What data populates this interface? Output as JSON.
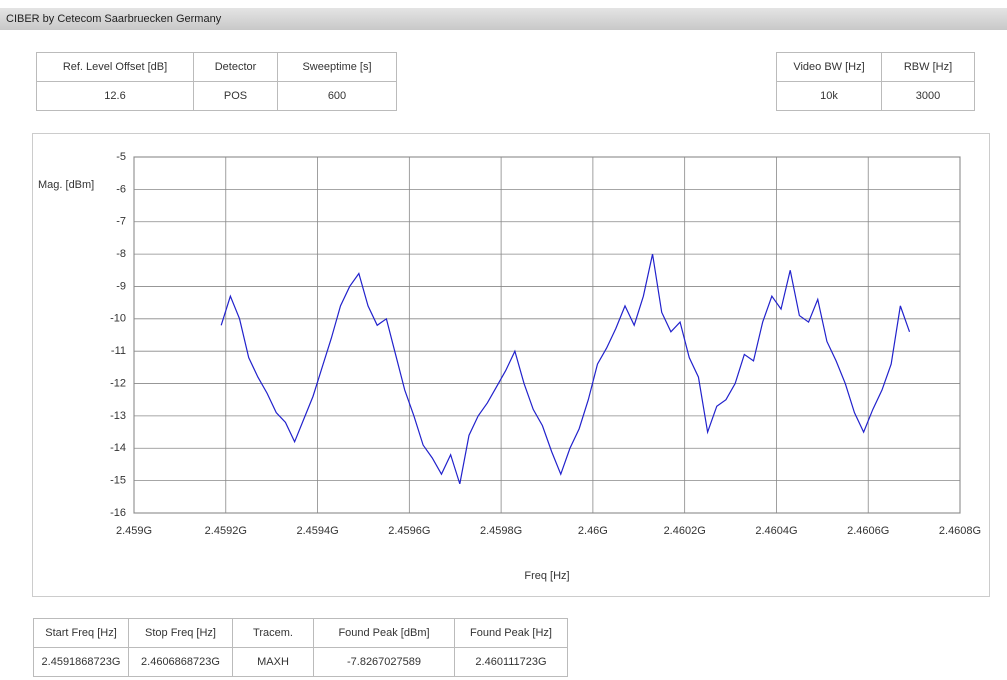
{
  "header": {
    "title": "CIBER by Cetecom Saarbruecken Germany"
  },
  "top_left_table": {
    "headers": [
      "Ref. Level Offset [dB]",
      "Detector",
      "Sweeptime [s]"
    ],
    "values": [
      "12.6",
      "POS",
      "600"
    ]
  },
  "top_right_table": {
    "headers": [
      "Video BW [Hz]",
      "RBW [Hz]"
    ],
    "values": [
      "10k",
      "3000"
    ]
  },
  "bottom_table": {
    "headers": [
      "Start Freq [Hz]",
      "Stop Freq [Hz]",
      "Tracem.",
      "Found Peak [dBm]",
      "Found Peak [Hz]"
    ],
    "values": [
      "2.4591868723G",
      "2.4606868723G",
      "MAXH",
      "-7.8267027589",
      "2.460111723G"
    ]
  },
  "chart_data": {
    "type": "line",
    "y_label": "Mag. [dBm]",
    "x_label": "Freq [Hz]",
    "grid": true,
    "xlim": [
      2.459,
      2.4608
    ],
    "ylim": [
      -16,
      -5
    ],
    "xticks": [
      {
        "value": 2.459,
        "label": "2.459G"
      },
      {
        "value": 2.4592,
        "label": "2.4592G"
      },
      {
        "value": 2.4594,
        "label": "2.4594G"
      },
      {
        "value": 2.4596,
        "label": "2.4596G"
      },
      {
        "value": 2.4598,
        "label": "2.4598G"
      },
      {
        "value": 2.46,
        "label": "2.46G"
      },
      {
        "value": 2.4602,
        "label": "2.4602G"
      },
      {
        "value": 2.4604,
        "label": "2.4604G"
      },
      {
        "value": 2.4606,
        "label": "2.4606G"
      },
      {
        "value": 2.4608,
        "label": "2.4608G"
      }
    ],
    "yticks": [
      -5,
      -6,
      -7,
      -8,
      -9,
      -10,
      -11,
      -12,
      -13,
      -14,
      -15,
      -16
    ],
    "x": [
      2.45919,
      2.45921,
      2.45923,
      2.45925,
      2.45927,
      2.45929,
      2.45931,
      2.45933,
      2.45935,
      2.45937,
      2.45939,
      2.45941,
      2.45943,
      2.45945,
      2.45947,
      2.45949,
      2.45951,
      2.45953,
      2.45955,
      2.45957,
      2.45959,
      2.45961,
      2.45963,
      2.45965,
      2.45967,
      2.45969,
      2.45971,
      2.45973,
      2.45975,
      2.45977,
      2.45979,
      2.45981,
      2.45983,
      2.45985,
      2.45987,
      2.45989,
      2.45991,
      2.45993,
      2.45995,
      2.45997,
      2.45999,
      2.46001,
      2.46003,
      2.46005,
      2.46007,
      2.46009,
      2.46011,
      2.46013,
      2.46015,
      2.46017,
      2.46019,
      2.46021,
      2.46023,
      2.46025,
      2.46027,
      2.46029,
      2.46031,
      2.46033,
      2.46035,
      2.46037,
      2.46039,
      2.46041,
      2.46043,
      2.46045,
      2.46047,
      2.46049,
      2.46051,
      2.46053,
      2.46055,
      2.46057,
      2.46059,
      2.46061,
      2.46063,
      2.46065,
      2.46067,
      2.46069
    ],
    "series": [
      {
        "color": "#2222cc",
        "values": [
          -10.2,
          -9.3,
          -10.0,
          -11.2,
          -11.8,
          -12.3,
          -12.9,
          -13.2,
          -13.8,
          -13.1,
          -12.4,
          -11.5,
          -10.6,
          -9.6,
          -9.0,
          -8.6,
          -9.6,
          -10.2,
          -10.0,
          -11.1,
          -12.2,
          -13.0,
          -13.9,
          -14.3,
          -14.8,
          -14.2,
          -15.1,
          -13.6,
          -13.0,
          -12.6,
          -12.1,
          -11.6,
          -11.0,
          -12.0,
          -12.8,
          -13.3,
          -14.1,
          -14.8,
          -14.0,
          -13.4,
          -12.5,
          -11.4,
          -10.9,
          -10.3,
          -9.6,
          -10.2,
          -9.3,
          -8.0,
          -9.8,
          -10.4,
          -10.1,
          -11.2,
          -11.8,
          -13.5,
          -12.7,
          -12.5,
          -12.0,
          -11.1,
          -11.3,
          -10.1,
          -9.3,
          -9.7,
          -8.5,
          -9.9,
          -10.1,
          -9.4,
          -10.7,
          -11.3,
          -12.0,
          -12.9,
          -13.5,
          -12.8,
          -12.2,
          -11.4,
          -9.6,
          -10.4
        ]
      }
    ]
  }
}
